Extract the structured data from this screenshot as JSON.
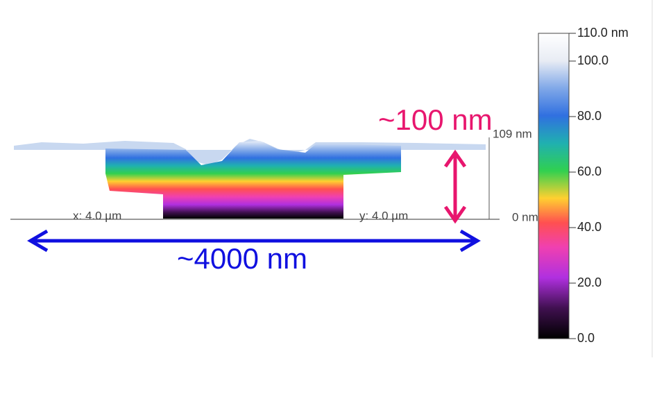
{
  "colorbar": {
    "lim": [
      0,
      110
    ],
    "ticks": [
      {
        "value": 110,
        "label": "110.0 nm"
      },
      {
        "value": 100,
        "label": "100.0"
      },
      {
        "value": 80,
        "label": "80.0"
      },
      {
        "value": 60,
        "label": "60.0"
      },
      {
        "value": 40,
        "label": "40.0"
      },
      {
        "value": 20,
        "label": "20.0"
      },
      {
        "value": 0,
        "label": "0.0"
      }
    ]
  },
  "surface": {
    "x_axis": "x: 4.0 µm",
    "y_axis": "y: 4.0 µm",
    "z_top": "109 nm",
    "z_bottom": "0 nm"
  },
  "annotations": {
    "height": "~100 nm",
    "width": "~4000 nm"
  }
}
